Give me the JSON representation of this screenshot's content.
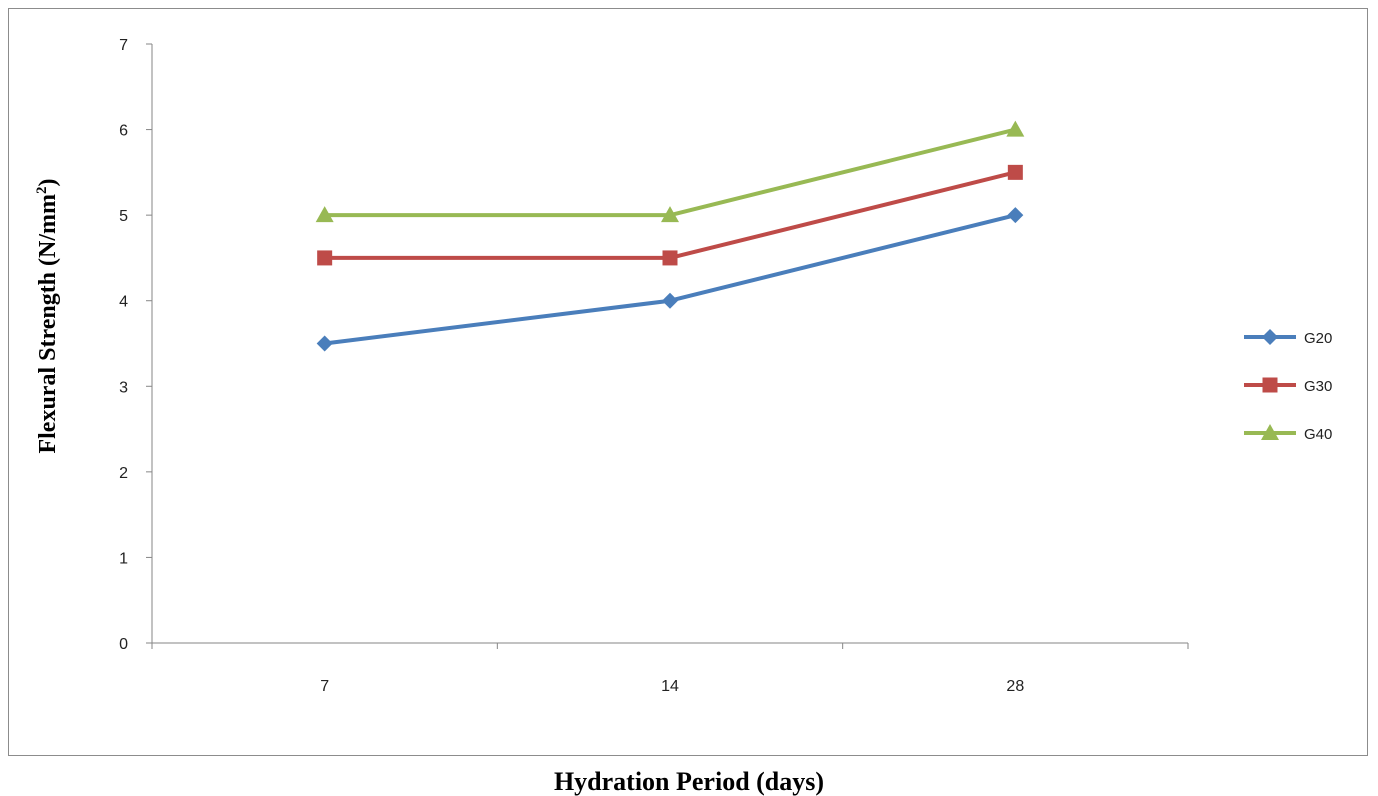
{
  "chart_data": {
    "type": "line",
    "categories": [
      "7",
      "14",
      "28"
    ],
    "series": [
      {
        "name": "G20",
        "values": [
          3.5,
          4.0,
          5.0
        ],
        "color": "#4a7ebb",
        "marker": "diamond"
      },
      {
        "name": "G30",
        "values": [
          4.5,
          4.5,
          5.5
        ],
        "color": "#be4b48",
        "marker": "square"
      },
      {
        "name": "G40",
        "values": [
          5.0,
          5.0,
          6.0
        ],
        "color": "#98b954",
        "marker": "triangle"
      }
    ],
    "title": "",
    "xlabel": "Hydration Period (days)",
    "ylabel_main": "Flexural Strength (N/mm",
    "ylabel_sup": "2",
    "ylabel_close": ")",
    "ylim": [
      0,
      7
    ],
    "yticks": [
      "0",
      "1",
      "2",
      "3",
      "4",
      "5",
      "6",
      "7"
    ],
    "grid": false,
    "legend_position": "right"
  }
}
